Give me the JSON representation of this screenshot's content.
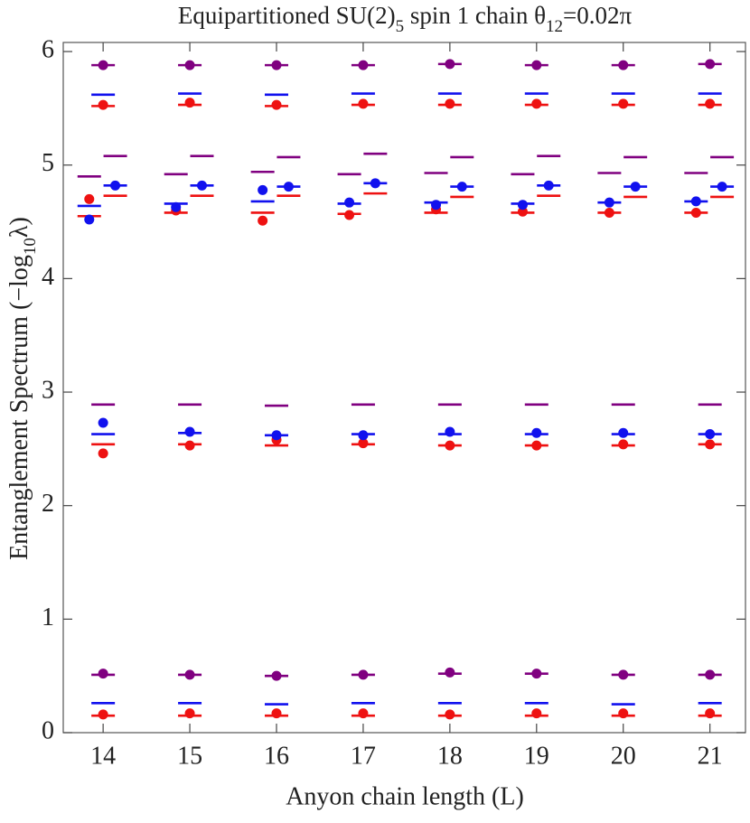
{
  "chart_data": {
    "type": "scatter",
    "title": [
      "Equipartitioned SU(2)",
      "5",
      " spin 1 chain θ",
      "12",
      "=0.02π"
    ],
    "x_label": "Anyon chain length (L)",
    "y_label": [
      "Entanglement  Spectrum (−log",
      "10",
      "λ)"
    ],
    "xlim": [
      13.54,
      21.41
    ],
    "xticks": [
      14,
      15,
      16,
      17,
      18,
      19,
      20,
      21
    ],
    "ylim": [
      0,
      6.08
    ],
    "yticks": [
      0,
      1,
      2,
      3,
      4,
      5,
      6
    ],
    "series": [
      {
        "marker": "dash",
        "color": "#ee1111",
        "x": [
          14,
          14,
          13.84,
          14.14,
          14,
          15,
          15,
          14.84,
          15.14,
          15,
          16,
          16,
          15.84,
          16.14,
          16,
          17,
          17,
          16.84,
          17.14,
          17,
          18,
          18,
          17.84,
          18.14,
          18,
          19,
          19,
          18.84,
          19.14,
          19,
          20,
          20,
          19.84,
          20.14,
          20,
          21,
          21,
          20.84,
          21.14,
          21
        ],
        "values": [
          0.15,
          2.54,
          4.55,
          4.73,
          5.52,
          0.15,
          2.54,
          4.58,
          4.73,
          5.53,
          0.15,
          2.53,
          4.58,
          4.73,
          5.52,
          0.15,
          2.54,
          4.57,
          4.75,
          5.53,
          0.15,
          2.53,
          4.58,
          4.72,
          5.53,
          0.15,
          2.53,
          4.58,
          4.73,
          5.53,
          0.15,
          2.53,
          4.58,
          4.72,
          5.53,
          0.15,
          2.54,
          4.58,
          4.72,
          5.53
        ]
      },
      {
        "marker": "dash",
        "color": "#1111ee",
        "x": [
          14,
          14,
          13.84,
          14.14,
          14,
          15,
          15,
          14.84,
          15.14,
          15,
          16,
          16,
          15.84,
          16.14,
          16,
          17,
          17,
          16.84,
          17.14,
          17,
          18,
          18,
          17.84,
          18.14,
          18,
          19,
          19,
          18.84,
          19.14,
          19,
          20,
          20,
          19.84,
          20.14,
          20,
          21,
          21,
          20.84,
          21.14,
          21
        ],
        "values": [
          0.26,
          2.63,
          4.64,
          4.82,
          5.62,
          0.26,
          2.64,
          4.66,
          4.82,
          5.63,
          0.25,
          2.62,
          4.68,
          4.81,
          5.62,
          0.26,
          2.63,
          4.66,
          4.84,
          5.63,
          0.26,
          2.63,
          4.67,
          4.81,
          5.63,
          0.26,
          2.63,
          4.66,
          4.82,
          5.63,
          0.25,
          2.63,
          4.67,
          4.81,
          5.63,
          0.26,
          2.63,
          4.68,
          4.81,
          5.63
        ]
      },
      {
        "marker": "dash",
        "color": "#800080",
        "x": [
          14,
          14,
          13.84,
          14.14,
          14,
          15,
          15,
          14.84,
          15.14,
          15,
          16,
          16,
          15.84,
          16.14,
          16,
          17,
          17,
          16.84,
          17.14,
          17,
          18,
          18,
          17.84,
          18.14,
          18,
          19,
          19,
          18.84,
          19.14,
          19,
          20,
          20,
          19.84,
          20.14,
          20,
          21,
          21,
          20.84,
          21.14,
          21
        ],
        "values": [
          0.51,
          2.89,
          4.9,
          5.08,
          5.88,
          0.51,
          2.89,
          4.92,
          5.08,
          5.88,
          0.5,
          2.88,
          4.94,
          5.07,
          5.88,
          0.51,
          2.89,
          4.92,
          5.1,
          5.88,
          0.52,
          2.89,
          4.93,
          5.07,
          5.89,
          0.52,
          2.89,
          4.92,
          5.08,
          5.88,
          0.51,
          2.89,
          4.93,
          5.07,
          5.88,
          0.51,
          2.89,
          4.93,
          5.07,
          5.89
        ]
      },
      {
        "marker": "dot",
        "color": "#ee1111",
        "x": [
          14,
          14,
          13.84,
          14,
          15,
          15,
          14.84,
          15,
          16,
          16,
          15.84,
          16,
          17,
          17,
          16.84,
          17,
          18,
          18,
          17.84,
          18,
          19,
          19,
          18.84,
          19,
          20,
          20,
          19.84,
          20,
          21,
          21,
          20.84,
          21
        ],
        "values": [
          0.16,
          2.46,
          4.7,
          5.53,
          0.17,
          2.53,
          4.6,
          5.55,
          0.17,
          2.58,
          4.51,
          5.53,
          0.17,
          2.55,
          4.56,
          5.54,
          0.16,
          2.53,
          4.61,
          5.54,
          0.17,
          2.53,
          4.59,
          5.54,
          0.17,
          2.54,
          4.58,
          5.54,
          0.17,
          2.54,
          4.58,
          5.54
        ]
      },
      {
        "marker": "dot",
        "color": "#1111ee",
        "x": [
          14,
          13.84,
          14.14,
          15,
          14.84,
          15.14,
          16,
          15.84,
          16.14,
          17,
          16.84,
          17.14,
          18,
          17.84,
          18.14,
          19,
          18.84,
          19.14,
          20,
          19.84,
          20.14,
          21,
          20.84,
          21.14
        ],
        "values": [
          2.73,
          4.52,
          4.82,
          2.65,
          4.63,
          4.82,
          2.62,
          4.78,
          4.81,
          2.62,
          4.67,
          4.84,
          2.65,
          4.65,
          4.81,
          2.64,
          4.65,
          4.82,
          2.64,
          4.67,
          4.81,
          2.63,
          4.68,
          4.81
        ]
      },
      {
        "marker": "dot",
        "color": "#800080",
        "x": [
          14,
          14,
          15,
          15,
          16,
          16,
          17,
          17,
          18,
          18,
          19,
          19,
          20,
          20,
          21,
          21
        ],
        "values": [
          0.52,
          5.88,
          0.51,
          5.88,
          0.5,
          5.88,
          0.51,
          5.88,
          0.53,
          5.89,
          0.52,
          5.88,
          0.51,
          5.88,
          0.51,
          5.89
        ]
      }
    ]
  }
}
